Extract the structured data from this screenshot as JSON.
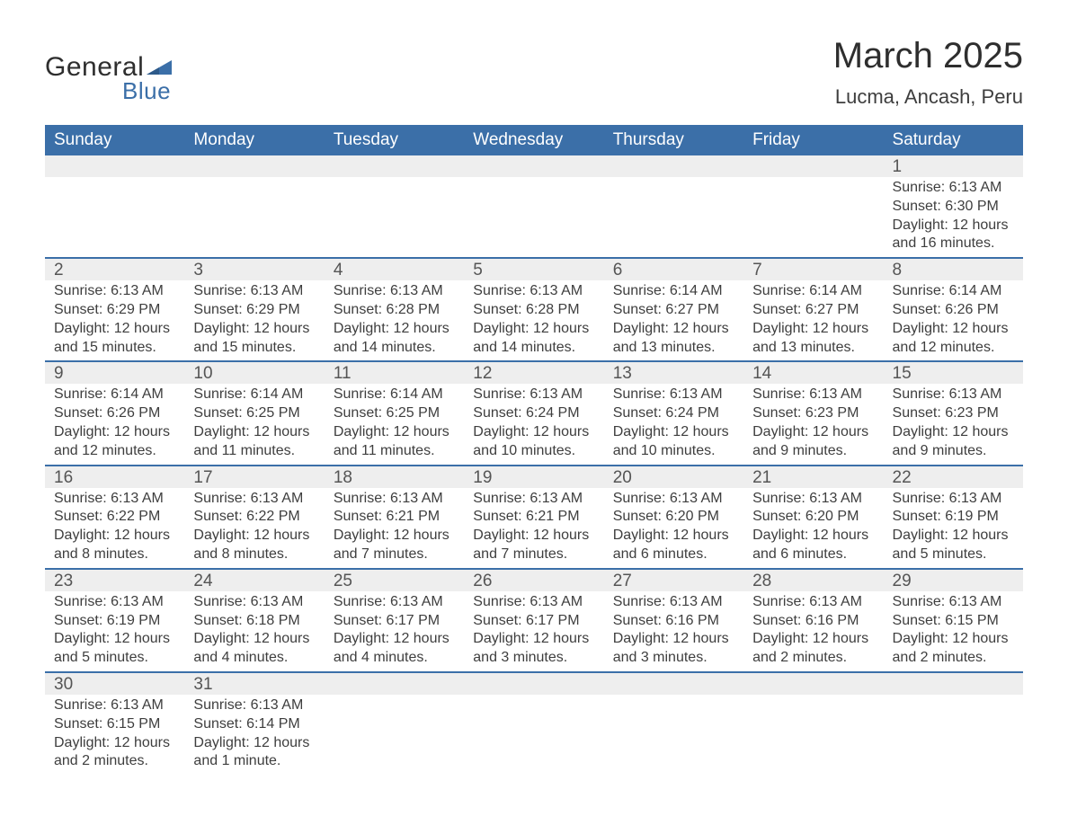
{
  "logo": {
    "text1": "General",
    "text2": "Blue",
    "tri_color": "#3b6fa8"
  },
  "title": "March 2025",
  "location": "Lucma, Ancash, Peru",
  "colors": {
    "header_bg": "#3b6fa8",
    "header_fg": "#ffffff",
    "daynum_bg": "#eeeeee",
    "row_sep": "#3b6fa8",
    "text": "#3e3e3e"
  },
  "weekdays": [
    "Sunday",
    "Monday",
    "Tuesday",
    "Wednesday",
    "Thursday",
    "Friday",
    "Saturday"
  ],
  "weeks": [
    [
      null,
      null,
      null,
      null,
      null,
      null,
      {
        "n": "1",
        "sunrise": "Sunrise: 6:13 AM",
        "sunset": "Sunset: 6:30 PM",
        "dl1": "Daylight: 12 hours",
        "dl2": "and 16 minutes."
      }
    ],
    [
      {
        "n": "2",
        "sunrise": "Sunrise: 6:13 AM",
        "sunset": "Sunset: 6:29 PM",
        "dl1": "Daylight: 12 hours",
        "dl2": "and 15 minutes."
      },
      {
        "n": "3",
        "sunrise": "Sunrise: 6:13 AM",
        "sunset": "Sunset: 6:29 PM",
        "dl1": "Daylight: 12 hours",
        "dl2": "and 15 minutes."
      },
      {
        "n": "4",
        "sunrise": "Sunrise: 6:13 AM",
        "sunset": "Sunset: 6:28 PM",
        "dl1": "Daylight: 12 hours",
        "dl2": "and 14 minutes."
      },
      {
        "n": "5",
        "sunrise": "Sunrise: 6:13 AM",
        "sunset": "Sunset: 6:28 PM",
        "dl1": "Daylight: 12 hours",
        "dl2": "and 14 minutes."
      },
      {
        "n": "6",
        "sunrise": "Sunrise: 6:14 AM",
        "sunset": "Sunset: 6:27 PM",
        "dl1": "Daylight: 12 hours",
        "dl2": "and 13 minutes."
      },
      {
        "n": "7",
        "sunrise": "Sunrise: 6:14 AM",
        "sunset": "Sunset: 6:27 PM",
        "dl1": "Daylight: 12 hours",
        "dl2": "and 13 minutes."
      },
      {
        "n": "8",
        "sunrise": "Sunrise: 6:14 AM",
        "sunset": "Sunset: 6:26 PM",
        "dl1": "Daylight: 12 hours",
        "dl2": "and 12 minutes."
      }
    ],
    [
      {
        "n": "9",
        "sunrise": "Sunrise: 6:14 AM",
        "sunset": "Sunset: 6:26 PM",
        "dl1": "Daylight: 12 hours",
        "dl2": "and 12 minutes."
      },
      {
        "n": "10",
        "sunrise": "Sunrise: 6:14 AM",
        "sunset": "Sunset: 6:25 PM",
        "dl1": "Daylight: 12 hours",
        "dl2": "and 11 minutes."
      },
      {
        "n": "11",
        "sunrise": "Sunrise: 6:14 AM",
        "sunset": "Sunset: 6:25 PM",
        "dl1": "Daylight: 12 hours",
        "dl2": "and 11 minutes."
      },
      {
        "n": "12",
        "sunrise": "Sunrise: 6:13 AM",
        "sunset": "Sunset: 6:24 PM",
        "dl1": "Daylight: 12 hours",
        "dl2": "and 10 minutes."
      },
      {
        "n": "13",
        "sunrise": "Sunrise: 6:13 AM",
        "sunset": "Sunset: 6:24 PM",
        "dl1": "Daylight: 12 hours",
        "dl2": "and 10 minutes."
      },
      {
        "n": "14",
        "sunrise": "Sunrise: 6:13 AM",
        "sunset": "Sunset: 6:23 PM",
        "dl1": "Daylight: 12 hours",
        "dl2": "and 9 minutes."
      },
      {
        "n": "15",
        "sunrise": "Sunrise: 6:13 AM",
        "sunset": "Sunset: 6:23 PM",
        "dl1": "Daylight: 12 hours",
        "dl2": "and 9 minutes."
      }
    ],
    [
      {
        "n": "16",
        "sunrise": "Sunrise: 6:13 AM",
        "sunset": "Sunset: 6:22 PM",
        "dl1": "Daylight: 12 hours",
        "dl2": "and 8 minutes."
      },
      {
        "n": "17",
        "sunrise": "Sunrise: 6:13 AM",
        "sunset": "Sunset: 6:22 PM",
        "dl1": "Daylight: 12 hours",
        "dl2": "and 8 minutes."
      },
      {
        "n": "18",
        "sunrise": "Sunrise: 6:13 AM",
        "sunset": "Sunset: 6:21 PM",
        "dl1": "Daylight: 12 hours",
        "dl2": "and 7 minutes."
      },
      {
        "n": "19",
        "sunrise": "Sunrise: 6:13 AM",
        "sunset": "Sunset: 6:21 PM",
        "dl1": "Daylight: 12 hours",
        "dl2": "and 7 minutes."
      },
      {
        "n": "20",
        "sunrise": "Sunrise: 6:13 AM",
        "sunset": "Sunset: 6:20 PM",
        "dl1": "Daylight: 12 hours",
        "dl2": "and 6 minutes."
      },
      {
        "n": "21",
        "sunrise": "Sunrise: 6:13 AM",
        "sunset": "Sunset: 6:20 PM",
        "dl1": "Daylight: 12 hours",
        "dl2": "and 6 minutes."
      },
      {
        "n": "22",
        "sunrise": "Sunrise: 6:13 AM",
        "sunset": "Sunset: 6:19 PM",
        "dl1": "Daylight: 12 hours",
        "dl2": "and 5 minutes."
      }
    ],
    [
      {
        "n": "23",
        "sunrise": "Sunrise: 6:13 AM",
        "sunset": "Sunset: 6:19 PM",
        "dl1": "Daylight: 12 hours",
        "dl2": "and 5 minutes."
      },
      {
        "n": "24",
        "sunrise": "Sunrise: 6:13 AM",
        "sunset": "Sunset: 6:18 PM",
        "dl1": "Daylight: 12 hours",
        "dl2": "and 4 minutes."
      },
      {
        "n": "25",
        "sunrise": "Sunrise: 6:13 AM",
        "sunset": "Sunset: 6:17 PM",
        "dl1": "Daylight: 12 hours",
        "dl2": "and 4 minutes."
      },
      {
        "n": "26",
        "sunrise": "Sunrise: 6:13 AM",
        "sunset": "Sunset: 6:17 PM",
        "dl1": "Daylight: 12 hours",
        "dl2": "and 3 minutes."
      },
      {
        "n": "27",
        "sunrise": "Sunrise: 6:13 AM",
        "sunset": "Sunset: 6:16 PM",
        "dl1": "Daylight: 12 hours",
        "dl2": "and 3 minutes."
      },
      {
        "n": "28",
        "sunrise": "Sunrise: 6:13 AM",
        "sunset": "Sunset: 6:16 PM",
        "dl1": "Daylight: 12 hours",
        "dl2": "and 2 minutes."
      },
      {
        "n": "29",
        "sunrise": "Sunrise: 6:13 AM",
        "sunset": "Sunset: 6:15 PM",
        "dl1": "Daylight: 12 hours",
        "dl2": "and 2 minutes."
      }
    ],
    [
      {
        "n": "30",
        "sunrise": "Sunrise: 6:13 AM",
        "sunset": "Sunset: 6:15 PM",
        "dl1": "Daylight: 12 hours",
        "dl2": "and 2 minutes."
      },
      {
        "n": "31",
        "sunrise": "Sunrise: 6:13 AM",
        "sunset": "Sunset: 6:14 PM",
        "dl1": "Daylight: 12 hours",
        "dl2": "and 1 minute."
      },
      null,
      null,
      null,
      null,
      null
    ]
  ]
}
